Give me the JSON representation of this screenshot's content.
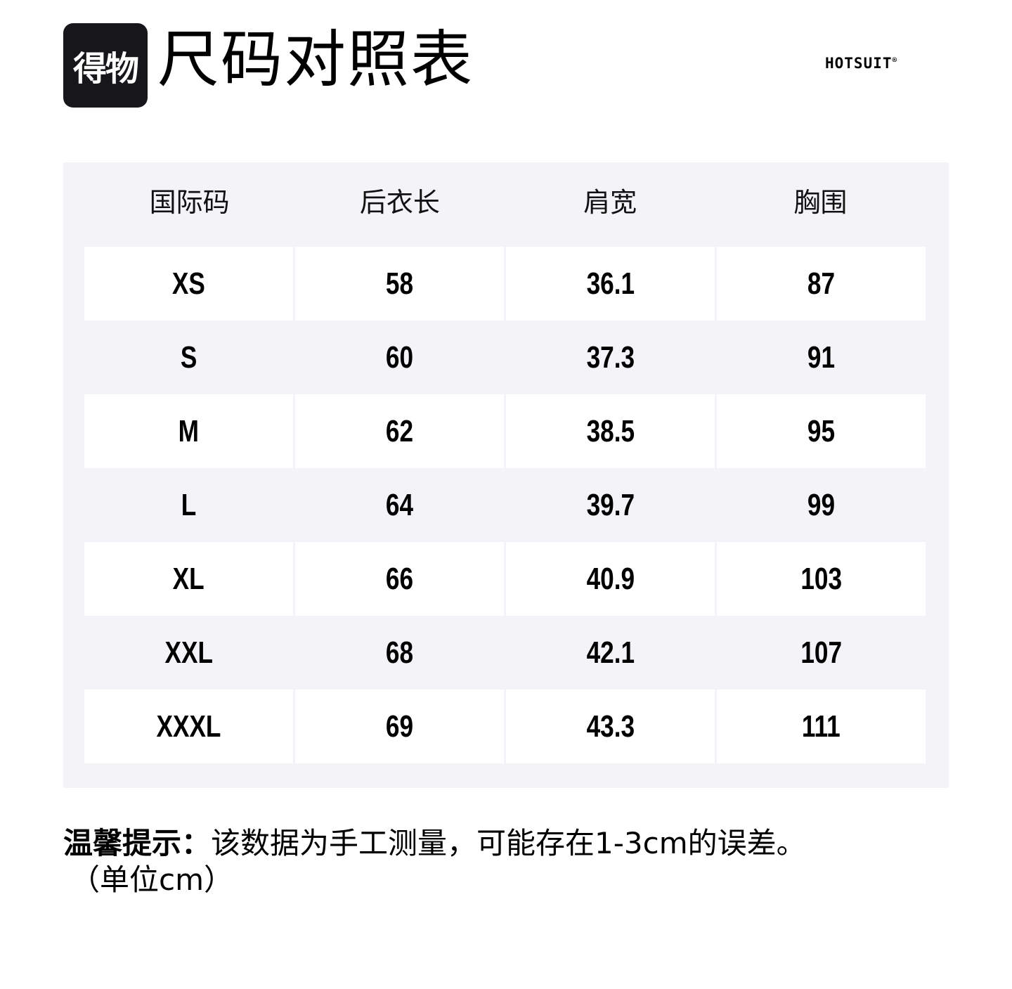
{
  "header": {
    "logo_text": "得物",
    "title": "尺码对照表",
    "brand": "HOTSUIT",
    "brand_mark": "®"
  },
  "table": {
    "columns": [
      "国际码",
      "后衣长",
      "肩宽",
      "胸围"
    ],
    "rows": [
      [
        "XS",
        "58",
        "36.1",
        "87"
      ],
      [
        "S",
        "60",
        "37.3",
        "91"
      ],
      [
        "M",
        "62",
        "38.5",
        "95"
      ],
      [
        "L",
        "64",
        "39.7",
        "99"
      ],
      [
        "XL",
        "66",
        "40.9",
        "103"
      ],
      [
        "XXL",
        "68",
        "42.1",
        "107"
      ],
      [
        "XXXL",
        "69",
        "43.3",
        "111"
      ]
    ]
  },
  "footer": {
    "note_label": "温馨提示：",
    "note_text": "该数据为手工测量，可能存在1-3cm的误差。",
    "unit": "（单位cm）"
  },
  "colors": {
    "table_bg": "#f4f4f8",
    "logo_bg": "#17171b"
  }
}
